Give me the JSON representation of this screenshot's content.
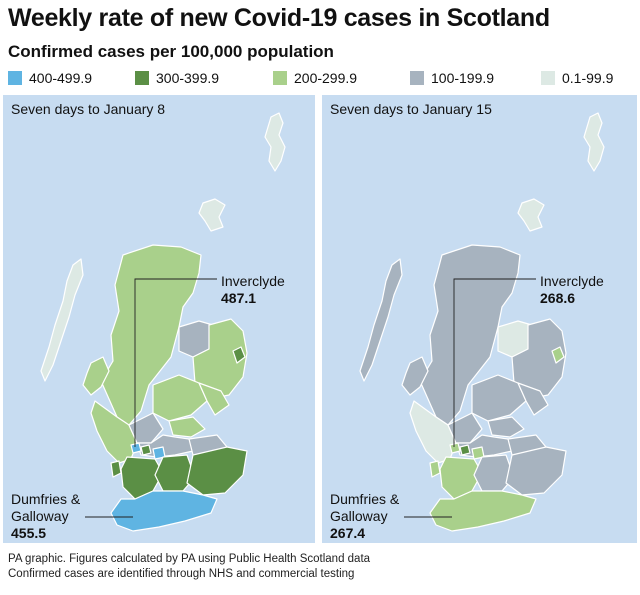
{
  "title": "Weekly rate of new Covid-19 cases in Scotland",
  "subtitle": "Confirmed cases per 100,000 population",
  "legend": [
    {
      "label": "400-499.9",
      "color": "#5fb4e2"
    },
    {
      "label": "300-399.9",
      "color": "#5b8f45"
    },
    {
      "label": "200-299.9",
      "color": "#a9d08b"
    },
    {
      "label": "100-199.9",
      "color": "#a7b3bf"
    },
    {
      "label": "0.1-99.9",
      "color": "#dde9e4"
    }
  ],
  "maps": [
    {
      "caption": "Seven days to January 8",
      "inverclyde": {
        "name": "Inverclyde",
        "value": "487.1"
      },
      "dumfries": {
        "name_line1": "Dumfries &",
        "name_line2": "Galloway",
        "value": "455.5"
      }
    },
    {
      "caption": "Seven days to January 15",
      "inverclyde": {
        "name": "Inverclyde",
        "value": "268.6"
      },
      "dumfries": {
        "name_line1": "Dumfries &",
        "name_line2": "Galloway",
        "value": "267.4"
      }
    }
  ],
  "footer": {
    "line1": "PA graphic. Figures calculated by PA using Public Health Scotland data",
    "line2": "Confirmed cases are identified through NHS and commercial testing"
  },
  "colors": {
    "sea": "#c7dcf1",
    "band_400": "#5fb4e2",
    "band_300": "#5b8f45",
    "band_200": "#a9d08b",
    "band_100": "#a7b3bf",
    "band_0": "#dde9e4",
    "border": "#ffffff"
  }
}
